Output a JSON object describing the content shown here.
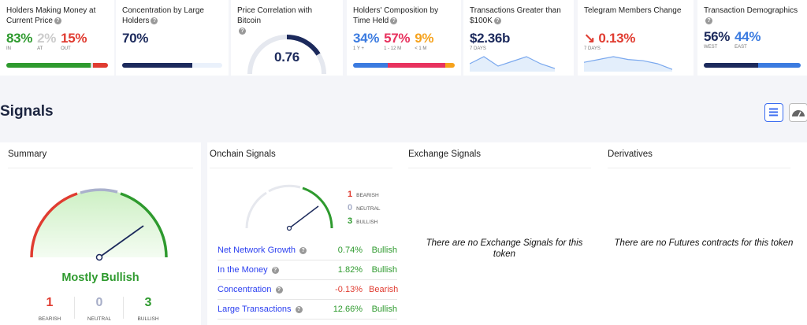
{
  "cards": {
    "money": {
      "title": "Holders Making Money at Current Price",
      "in": "83%",
      "in_label": "IN",
      "at": "2%",
      "at_label": "AT",
      "out": "15%",
      "out_label": "OUT",
      "fractions": [
        0.83,
        0.02,
        0.15
      ]
    },
    "concentration": {
      "title": "Concentration by Large Holders",
      "value": "70%",
      "fraction": 0.7
    },
    "correlation": {
      "title": "Price Correlation with Bitcoin",
      "value": "0.76",
      "fraction": 0.76
    },
    "time_held": {
      "title": "Holders' Composition by Time Held",
      "a": "34%",
      "a_label": "1 Y +",
      "b": "57%",
      "b_label": "1 - 12 M",
      "c": "9%",
      "c_label": "< 1 M",
      "fractions": [
        0.34,
        0.57,
        0.09
      ]
    },
    "transactions": {
      "title": "Transactions Greater than $100K",
      "value": "$2.36b",
      "period": "7 DAYS",
      "trend": [
        3,
        6,
        2,
        4,
        6,
        3,
        1
      ]
    },
    "telegram": {
      "title": "Telegram Members Change",
      "value": "0.13%",
      "direction": "down",
      "period": "7 DAYS",
      "trend": [
        3,
        4,
        5,
        4,
        3.6,
        2.5,
        0.5
      ]
    },
    "demographics": {
      "title": "Transaction Demographics",
      "west": "56%",
      "west_label": "WEST",
      "east": "44%",
      "east_label": "EAST",
      "fractions": [
        0.56,
        0.44
      ]
    }
  },
  "signals": {
    "title": "Signals",
    "view_list_icon": "list-icon",
    "view_gauge_icon": "gauge-icon"
  },
  "summary": {
    "title": "Summary",
    "verdict": "Mostly Bullish",
    "bearish": "1",
    "bearish_label": "BEARISH",
    "neutral": "0",
    "neutral_label": "NEUTRAL",
    "bullish": "3",
    "bullish_label": "BULLISH"
  },
  "onchain": {
    "title": "Onchain Signals",
    "bearish": "1",
    "bearish_label": "BEARISH",
    "neutral": "0",
    "neutral_label": "NEUTRAL",
    "bullish": "3",
    "bullish_label": "BULLISH",
    "rows": [
      {
        "name": "Net Network Growth",
        "value": "0.74%",
        "signal": "Bullish"
      },
      {
        "name": "In the Money",
        "value": "1.82%",
        "signal": "Bullish"
      },
      {
        "name": "Concentration",
        "value": "-0.13%",
        "signal": "Bearish"
      },
      {
        "name": "Large Transactions",
        "value": "12.66%",
        "signal": "Bullish"
      }
    ]
  },
  "exchange": {
    "title": "Exchange Signals",
    "empty": "There are no Exchange Signals for this token"
  },
  "derivatives": {
    "title": "Derivatives",
    "empty": "There are no Futures contracts for this token"
  },
  "colors": {
    "green": "#2e9a2e",
    "red": "#e03c31",
    "navy": "#1c2a5c",
    "blue": "#3b7be0",
    "pink": "#e8325e",
    "orange": "#f6a21c"
  }
}
